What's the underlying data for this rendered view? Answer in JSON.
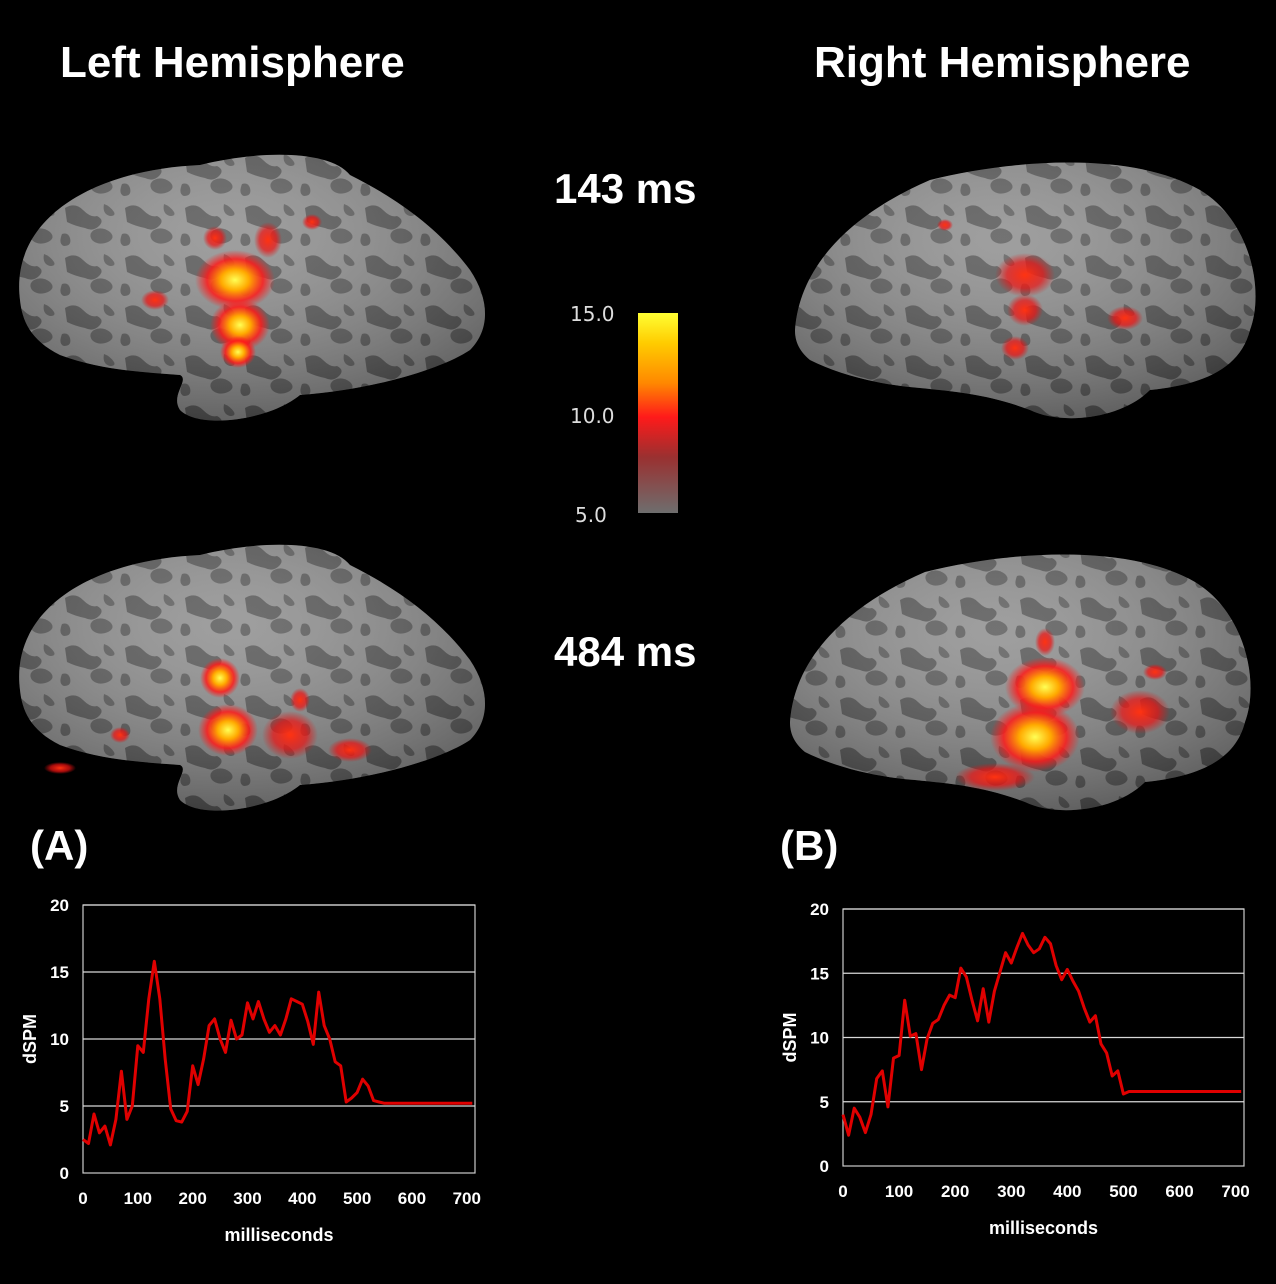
{
  "titles": {
    "left": "Left Hemisphere",
    "right": "Right Hemisphere"
  },
  "times": {
    "top": "143 ms",
    "bottom": "484 ms"
  },
  "panel_labels": {
    "a": "(A)",
    "b": "(B)"
  },
  "colorbar": {
    "ticks": [
      "15.0",
      "10.0",
      "5.0"
    ],
    "colors": [
      "#ffff33",
      "#ff9900",
      "#ff1a1a",
      "#8a3b3b",
      "#6e6e6e"
    ]
  },
  "brains": [
    {
      "name": "left-143"
    },
    {
      "name": "right-143"
    },
    {
      "name": "left-484"
    },
    {
      "name": "right-484"
    }
  ],
  "chart_data": [
    {
      "type": "line",
      "panel": "(A)",
      "xlabel": "milliseconds",
      "ylabel": "dSPM",
      "xlim": [
        0,
        715
      ],
      "ylim": [
        0,
        20
      ],
      "xticks": [
        0,
        100,
        200,
        300,
        400,
        500,
        600,
        700
      ],
      "yticks": [
        0,
        5,
        10,
        15,
        20
      ],
      "grid": true,
      "line_color": "#e00000",
      "x": [
        0,
        10,
        20,
        30,
        40,
        50,
        60,
        70,
        80,
        90,
        100,
        110,
        120,
        130,
        140,
        150,
        160,
        170,
        180,
        190,
        200,
        210,
        220,
        230,
        240,
        250,
        260,
        270,
        280,
        290,
        300,
        310,
        320,
        330,
        340,
        350,
        360,
        370,
        380,
        390,
        400,
        410,
        420,
        430,
        440,
        450,
        460,
        470,
        480,
        490,
        500,
        510,
        520,
        530,
        540,
        550,
        560,
        570,
        580,
        590,
        600,
        610,
        620,
        630,
        640,
        650,
        660,
        670,
        680,
        690,
        700,
        710
      ],
      "y": [
        2.5,
        2.2,
        4.4,
        3.0,
        3.5,
        2.1,
        4.0,
        7.6,
        4.0,
        5.0,
        9.5,
        9.0,
        13.0,
        15.8,
        13.0,
        8.5,
        4.8,
        3.9,
        3.8,
        4.6,
        8.0,
        6.6,
        8.5,
        11.0,
        11.5,
        10.0,
        9.0,
        11.4,
        10.0,
        10.3,
        12.7,
        11.5,
        12.8,
        11.5,
        10.5,
        11.0,
        10.3,
        11.5,
        13.0,
        12.8,
        12.6,
        11.3,
        9.6,
        13.5,
        11.0,
        10.0,
        8.3,
        8.0,
        5.3,
        5.6,
        6.0,
        7.0,
        6.5,
        5.4,
        5.3,
        5.2,
        5.2,
        5.2,
        5.2,
        5.2,
        5.2,
        5.2,
        5.2,
        5.2,
        5.2,
        5.2,
        5.2,
        5.2,
        5.2,
        5.2,
        5.2,
        5.2
      ]
    },
    {
      "type": "line",
      "panel": "(B)",
      "xlabel": "milliseconds",
      "ylabel": "dSPM",
      "xlim": [
        0,
        715
      ],
      "ylim": [
        0,
        20
      ],
      "xticks": [
        0,
        100,
        200,
        300,
        400,
        500,
        600,
        700
      ],
      "yticks": [
        0,
        5,
        10,
        15,
        20
      ],
      "grid": true,
      "line_color": "#e00000",
      "x": [
        0,
        10,
        20,
        30,
        40,
        50,
        60,
        70,
        80,
        90,
        100,
        110,
        120,
        130,
        140,
        150,
        160,
        170,
        180,
        190,
        200,
        210,
        220,
        230,
        240,
        250,
        260,
        270,
        280,
        290,
        300,
        310,
        320,
        330,
        340,
        350,
        360,
        370,
        380,
        390,
        400,
        410,
        420,
        430,
        440,
        450,
        460,
        470,
        480,
        490,
        500,
        510,
        520,
        530,
        540,
        550,
        560,
        570,
        580,
        590,
        600,
        610,
        620,
        630,
        640,
        650,
        660,
        670,
        680,
        690,
        700,
        710
      ],
      "y": [
        4.0,
        2.4,
        4.5,
        3.8,
        2.6,
        4.0,
        6.8,
        7.4,
        4.6,
        8.4,
        8.6,
        12.9,
        10.1,
        10.3,
        7.5,
        9.9,
        11.1,
        11.4,
        12.5,
        13.3,
        13.1,
        15.4,
        14.7,
        12.9,
        11.3,
        13.8,
        11.2,
        13.6,
        15.1,
        16.6,
        15.8,
        17.0,
        18.1,
        17.2,
        16.6,
        16.9,
        17.8,
        17.3,
        15.6,
        14.5,
        15.3,
        14.4,
        13.6,
        12.3,
        11.2,
        11.7,
        9.5,
        8.8,
        7.0,
        7.4,
        5.6,
        5.8,
        5.8,
        5.8,
        5.8,
        5.8,
        5.8,
        5.8,
        5.8,
        5.8,
        5.8,
        5.8,
        5.8,
        5.8,
        5.8,
        5.8,
        5.8,
        5.8,
        5.8,
        5.8,
        5.8,
        5.8
      ]
    }
  ]
}
